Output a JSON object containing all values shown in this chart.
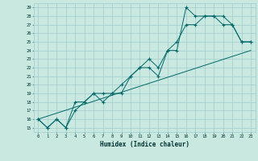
{
  "xlabel": "Humidex (Indice chaleur)",
  "bg_color": "#c8e8e0",
  "grid_color": "#a0cccc",
  "line_color": "#006868",
  "xlim": [
    -0.5,
    23.5
  ],
  "ylim": [
    14.5,
    29.5
  ],
  "xticks": [
    0,
    1,
    2,
    3,
    4,
    5,
    6,
    7,
    8,
    9,
    10,
    11,
    12,
    13,
    14,
    15,
    16,
    17,
    18,
    19,
    20,
    21,
    22,
    23
  ],
  "yticks": [
    15,
    16,
    17,
    18,
    19,
    20,
    21,
    22,
    23,
    24,
    25,
    26,
    27,
    28,
    29
  ],
  "line1_x": [
    0,
    1,
    2,
    3,
    4,
    5,
    6,
    7,
    8,
    9,
    10,
    11,
    12,
    13,
    14,
    15,
    16,
    17,
    18,
    19,
    20,
    21,
    22,
    23
  ],
  "line1_y": [
    16,
    15,
    16,
    15,
    18,
    18,
    19,
    19,
    19,
    19,
    21,
    22,
    22,
    21,
    24,
    24,
    29,
    28,
    28,
    28,
    27,
    27,
    25,
    25
  ],
  "line2_x": [
    0,
    1,
    2,
    3,
    4,
    5,
    6,
    7,
    8,
    9,
    10,
    11,
    12,
    13,
    14,
    15,
    16,
    17,
    18,
    19,
    20,
    21,
    22,
    23
  ],
  "line2_y": [
    16,
    15,
    16,
    15,
    17,
    18,
    19,
    18,
    19,
    20,
    21,
    22,
    23,
    22,
    24,
    25,
    27,
    27,
    28,
    28,
    28,
    27,
    25,
    25
  ],
  "line3_x": [
    0,
    23
  ],
  "line3_y": [
    16,
    24
  ],
  "marker": "+"
}
